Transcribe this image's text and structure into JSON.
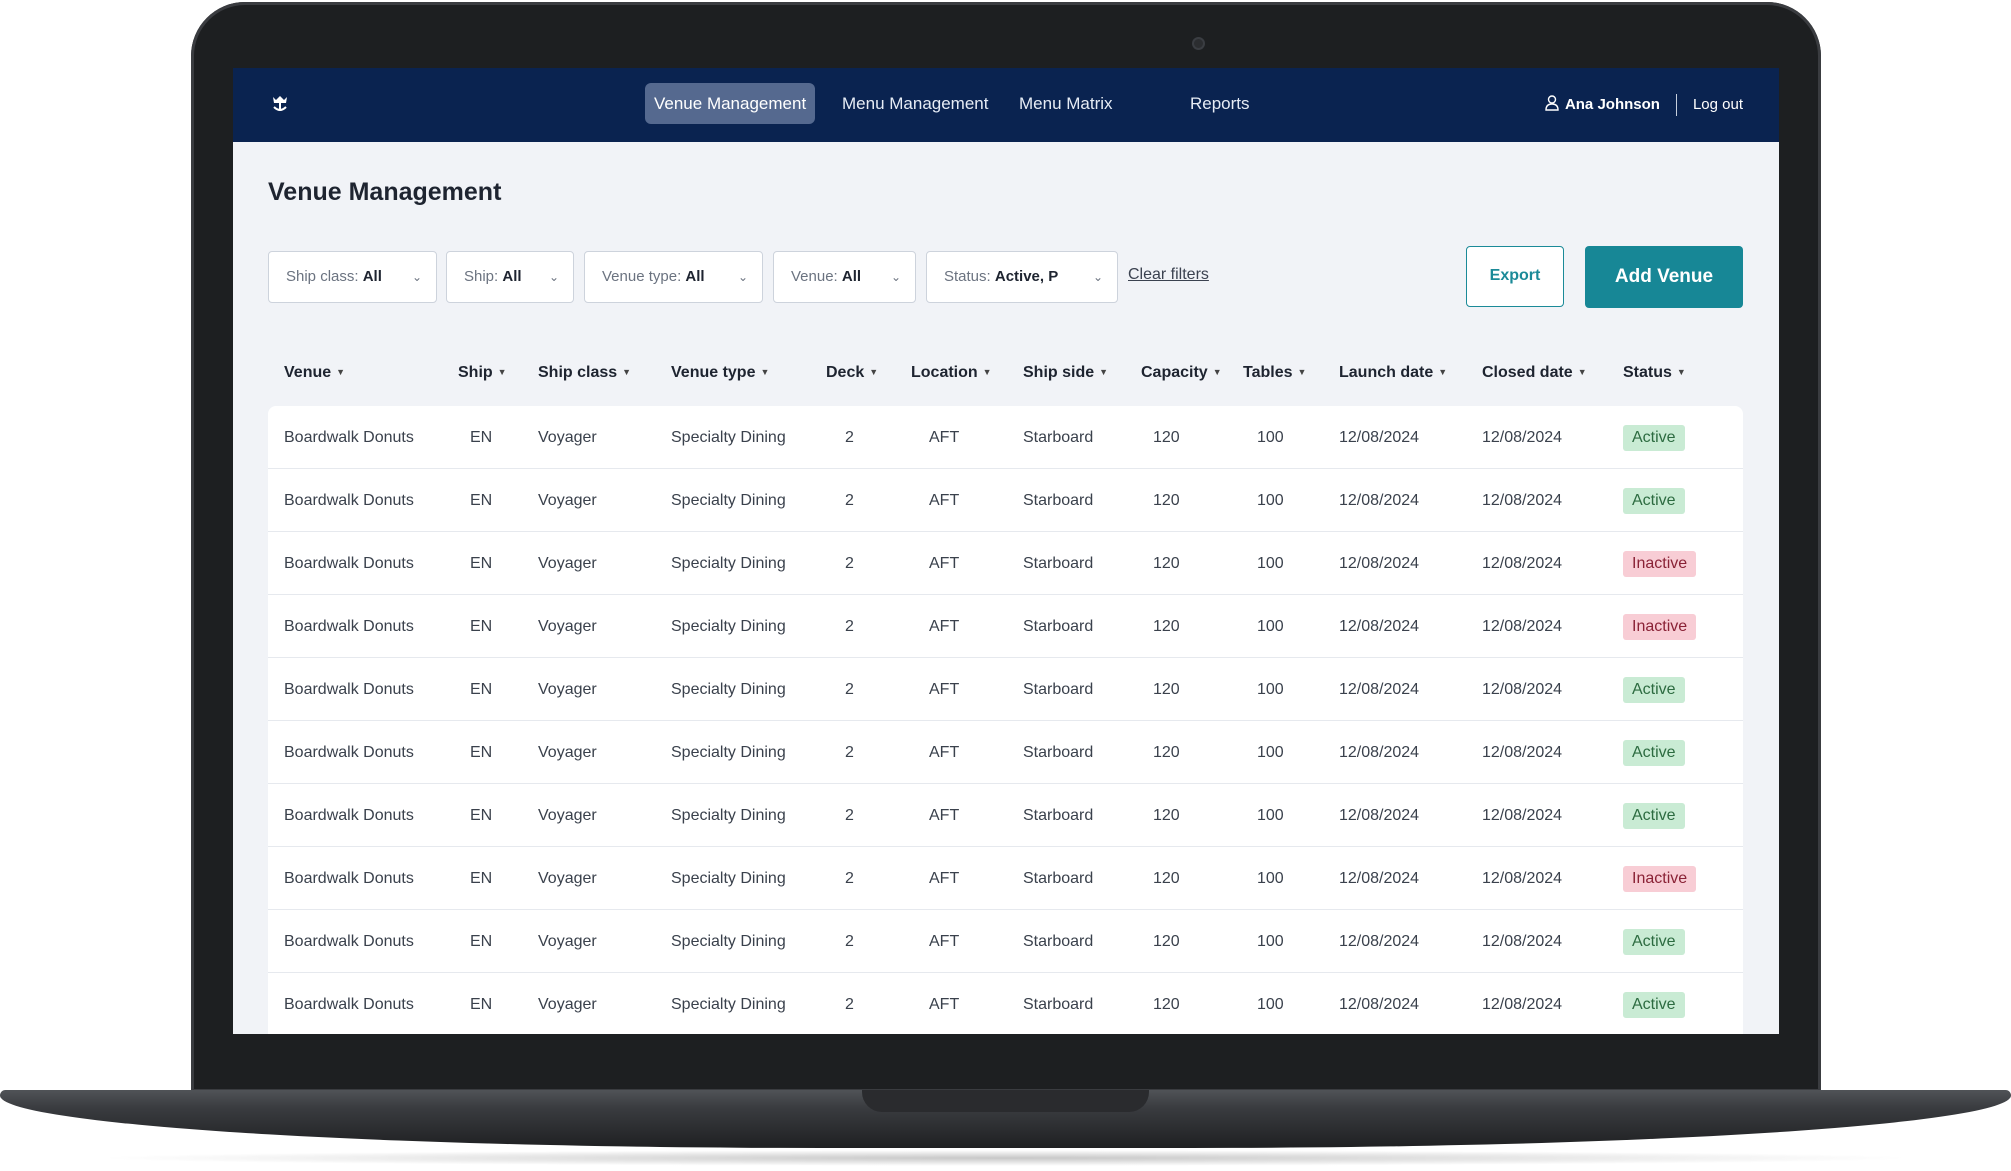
{
  "nav": {
    "tabs": [
      {
        "label": "Venue Management",
        "active": true
      },
      {
        "label": "Menu Management",
        "active": false
      },
      {
        "label": "Menu Matrix",
        "active": false
      },
      {
        "label": "Reports",
        "active": false
      }
    ],
    "user_name": "Ana Johnson",
    "logout": "Log out"
  },
  "page_title": "Venue Management",
  "filters": [
    {
      "label": "Ship class:",
      "value": "All"
    },
    {
      "label": "Ship:",
      "value": "All"
    },
    {
      "label": "Venue type:",
      "value": "All"
    },
    {
      "label": "Venue:",
      "value": "All"
    },
    {
      "label": "Status:",
      "value": "Active, P"
    }
  ],
  "clear_filters": "Clear filters",
  "actions": {
    "export": "Export",
    "add": "Add Venue"
  },
  "table": {
    "columns": [
      "Venue",
      "Ship",
      "Ship class",
      "Venue type",
      "Deck",
      "Location",
      "Ship side",
      "Capacity",
      "Tables",
      "Launch date",
      "Closed date",
      "Status"
    ],
    "rows": [
      [
        "Boardwalk Donuts",
        "EN",
        "Voyager",
        "Specialty Dining",
        "2",
        "AFT",
        "Starboard",
        "120",
        "100",
        "12/08/2024",
        "12/08/2024",
        "Active"
      ],
      [
        "Boardwalk Donuts",
        "EN",
        "Voyager",
        "Specialty Dining",
        "2",
        "AFT",
        "Starboard",
        "120",
        "100",
        "12/08/2024",
        "12/08/2024",
        "Active"
      ],
      [
        "Boardwalk Donuts",
        "EN",
        "Voyager",
        "Specialty Dining",
        "2",
        "AFT",
        "Starboard",
        "120",
        "100",
        "12/08/2024",
        "12/08/2024",
        "Inactive"
      ],
      [
        "Boardwalk Donuts",
        "EN",
        "Voyager",
        "Specialty Dining",
        "2",
        "AFT",
        "Starboard",
        "120",
        "100",
        "12/08/2024",
        "12/08/2024",
        "Inactive"
      ],
      [
        "Boardwalk Donuts",
        "EN",
        "Voyager",
        "Specialty Dining",
        "2",
        "AFT",
        "Starboard",
        "120",
        "100",
        "12/08/2024",
        "12/08/2024",
        "Active"
      ],
      [
        "Boardwalk Donuts",
        "EN",
        "Voyager",
        "Specialty Dining",
        "2",
        "AFT",
        "Starboard",
        "120",
        "100",
        "12/08/2024",
        "12/08/2024",
        "Active"
      ],
      [
        "Boardwalk Donuts",
        "EN",
        "Voyager",
        "Specialty Dining",
        "2",
        "AFT",
        "Starboard",
        "120",
        "100",
        "12/08/2024",
        "12/08/2024",
        "Active"
      ],
      [
        "Boardwalk Donuts",
        "EN",
        "Voyager",
        "Specialty Dining",
        "2",
        "AFT",
        "Starboard",
        "120",
        "100",
        "12/08/2024",
        "12/08/2024",
        "Inactive"
      ],
      [
        "Boardwalk Donuts",
        "EN",
        "Voyager",
        "Specialty Dining",
        "2",
        "AFT",
        "Starboard",
        "120",
        "100",
        "12/08/2024",
        "12/08/2024",
        "Active"
      ],
      [
        "Boardwalk Donuts",
        "EN",
        "Voyager",
        "Specialty Dining",
        "2",
        "AFT",
        "Starboard",
        "120",
        "100",
        "12/08/2024",
        "12/08/2024",
        "Active"
      ]
    ]
  },
  "icons": {
    "logo": "crown-anchor-logo",
    "user": "user-icon",
    "sort": "caret-down-icon",
    "dropdown": "chevron-down-icon"
  },
  "colors": {
    "nav_bg": "#0a2350",
    "accent": "#178796",
    "active_badge": "#c9ebd4",
    "inactive_badge": "#f8cdd5"
  }
}
